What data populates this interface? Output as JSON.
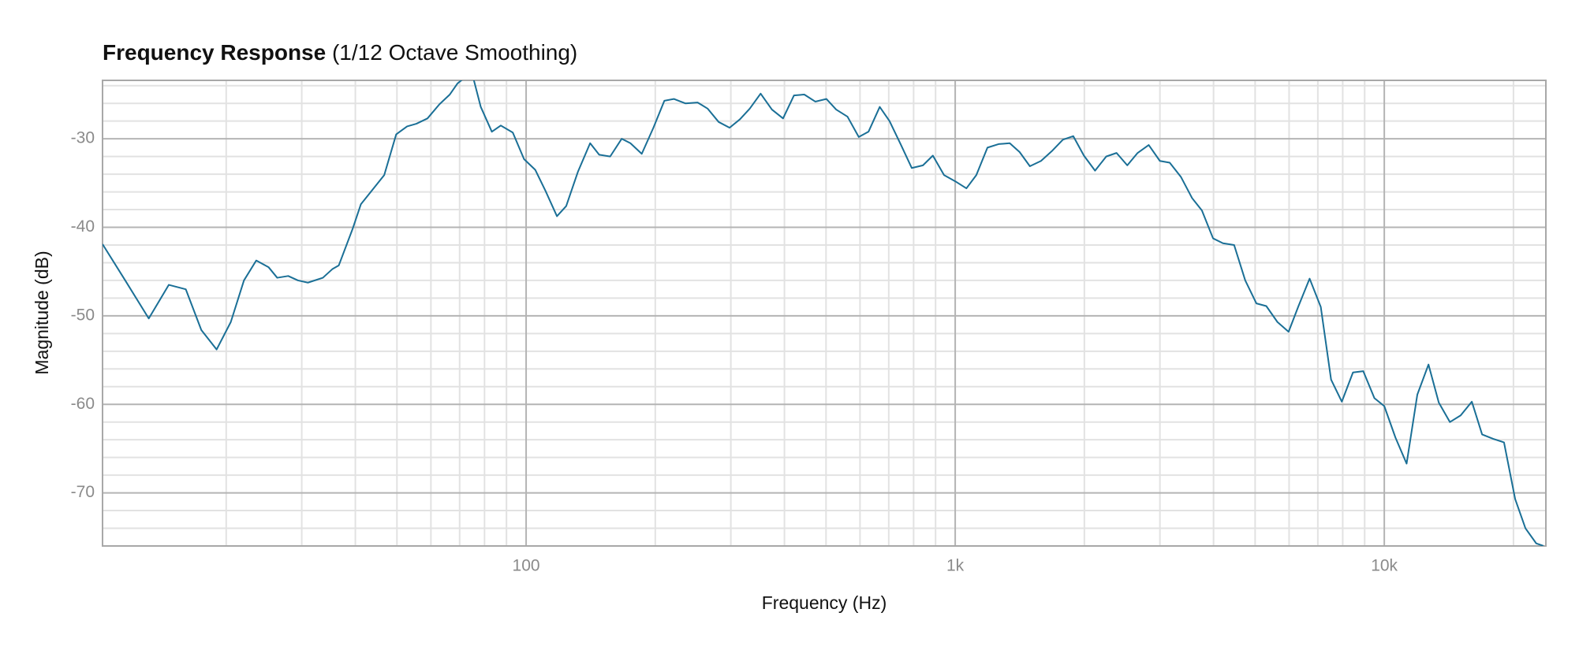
{
  "chart_data": {
    "type": "line",
    "title": "Frequency Response",
    "subtitle": "(1/12 Octave Smoothing)",
    "x_label": "Frequency (Hz)",
    "y_label": "Magnitude (dB)",
    "x_scale": "log",
    "xlim": [
      10.3,
      23800
    ],
    "ylim": [
      -76,
      -23.4
    ],
    "xticks": [
      100,
      {
        "value": 1000,
        "label": "1k"
      },
      {
        "value": 10000,
        "label": "10k"
      }
    ],
    "yticks": [
      -30,
      -40,
      -50,
      -60,
      -70
    ],
    "x_minor_ticks": [
      20,
      30,
      40,
      50,
      60,
      70,
      80,
      90,
      200,
      300,
      400,
      500,
      600,
      700,
      800,
      900,
      2000,
      3000,
      4000,
      5000,
      6000,
      7000,
      8000,
      9000,
      20000
    ],
    "y_minor_ticks": [
      -74,
      -72,
      -68,
      -66,
      -64,
      -62,
      -58,
      -56,
      -54,
      -52,
      -48,
      -46,
      -44,
      -42,
      -38,
      -36,
      -34,
      -32,
      -28,
      -26,
      -24
    ],
    "grid": true,
    "x": [
      10.3,
      11.6,
      13.2,
      14.7,
      16.1,
      17.5,
      19.0,
      20.5,
      22.0,
      23.5,
      25.1,
      26.3,
      27.9,
      29.4,
      31.0,
      33.6,
      35.4,
      36.6,
      39.4,
      41.2,
      46.7,
      49.8,
      52.8,
      55.5,
      58.9,
      62.8,
      66.4,
      69.2,
      72.3,
      75.2,
      78.4,
      83.2,
      87.3,
      93.1,
      98.9,
      105,
      111,
      118,
      124,
      132,
      141,
      148,
      157,
      167,
      175,
      186,
      198,
      210,
      221,
      235,
      251,
      265,
      281,
      298,
      315,
      332,
      352,
      374,
      397,
      421,
      445,
      472,
      501,
      528,
      561,
      596,
      628,
      667,
      703,
      746,
      792,
      841,
      887,
      942,
      1000,
      1062,
      1120,
      1189,
      1262,
      1340,
      1413,
      1493,
      1585,
      1679,
      1782,
      1884,
      1995,
      2118,
      2249,
      2377,
      2518,
      2661,
      2825,
      2999,
      3162,
      3357,
      3565,
      3758,
      3990,
      4207,
      4467,
      4742,
      5035,
      5309,
      5636,
      5984,
      6310,
      6699,
      7112,
      7516,
      7962,
      8453,
      8933,
      9484,
      10000,
      10617,
      11272,
      11940,
      12677,
      13397,
      14223,
      15066,
      15996,
      16904,
      17947,
      19011,
      20184,
      21330,
      22594,
      23496
    ],
    "series": [
      {
        "name": "Magnitude",
        "color": "#1a6f96",
        "values": [
          -41.9,
          -45.9,
          -50.3,
          -46.5,
          -47.0,
          -51.6,
          -53.8,
          -50.7,
          -46.0,
          -43.75,
          -44.5,
          -45.7,
          -45.5,
          -46.0,
          -46.25,
          -45.7,
          -44.7,
          -44.3,
          -40.2,
          -37.4,
          -34.1,
          -29.5,
          -28.6,
          -28.3,
          -27.7,
          -26.1,
          -25.0,
          -23.75,
          -23.0,
          -23.0,
          -26.4,
          -29.2,
          -28.5,
          -29.3,
          -32.3,
          -33.5,
          -35.9,
          -38.75,
          -37.6,
          -33.75,
          -30.5,
          -31.8,
          -32.0,
          -30.0,
          -30.5,
          -31.7,
          -28.75,
          -25.7,
          -25.5,
          -26.0,
          -25.9,
          -26.6,
          -28.1,
          -28.75,
          -27.8,
          -26.6,
          -24.9,
          -26.7,
          -27.7,
          -25.1,
          -25.0,
          -25.8,
          -25.5,
          -26.7,
          -27.5,
          -29.8,
          -29.2,
          -26.4,
          -28.0,
          -30.6,
          -33.3,
          -33.0,
          -31.9,
          -34.1,
          -34.8,
          -35.6,
          -34.1,
          -31.0,
          -30.6,
          -30.5,
          -31.5,
          -33.1,
          -32.5,
          -31.4,
          -30.1,
          -29.7,
          -31.9,
          -33.6,
          -32.0,
          -31.6,
          -33.0,
          -31.6,
          -30.7,
          -32.5,
          -32.7,
          -34.3,
          -36.7,
          -38.1,
          -41.25,
          -41.8,
          -42.0,
          -46.0,
          -48.6,
          -48.9,
          -50.7,
          -51.8,
          -48.9,
          -45.8,
          -49.0,
          -57.2,
          -59.7,
          -56.4,
          -56.25,
          -59.3,
          -60.2,
          -63.75,
          -66.7,
          -58.9,
          -55.5,
          -59.8,
          -62.0,
          -61.25,
          -59.7,
          -63.4,
          -63.9,
          -64.3,
          -70.7,
          -74.0,
          -75.7,
          -76.0
        ]
      }
    ]
  }
}
